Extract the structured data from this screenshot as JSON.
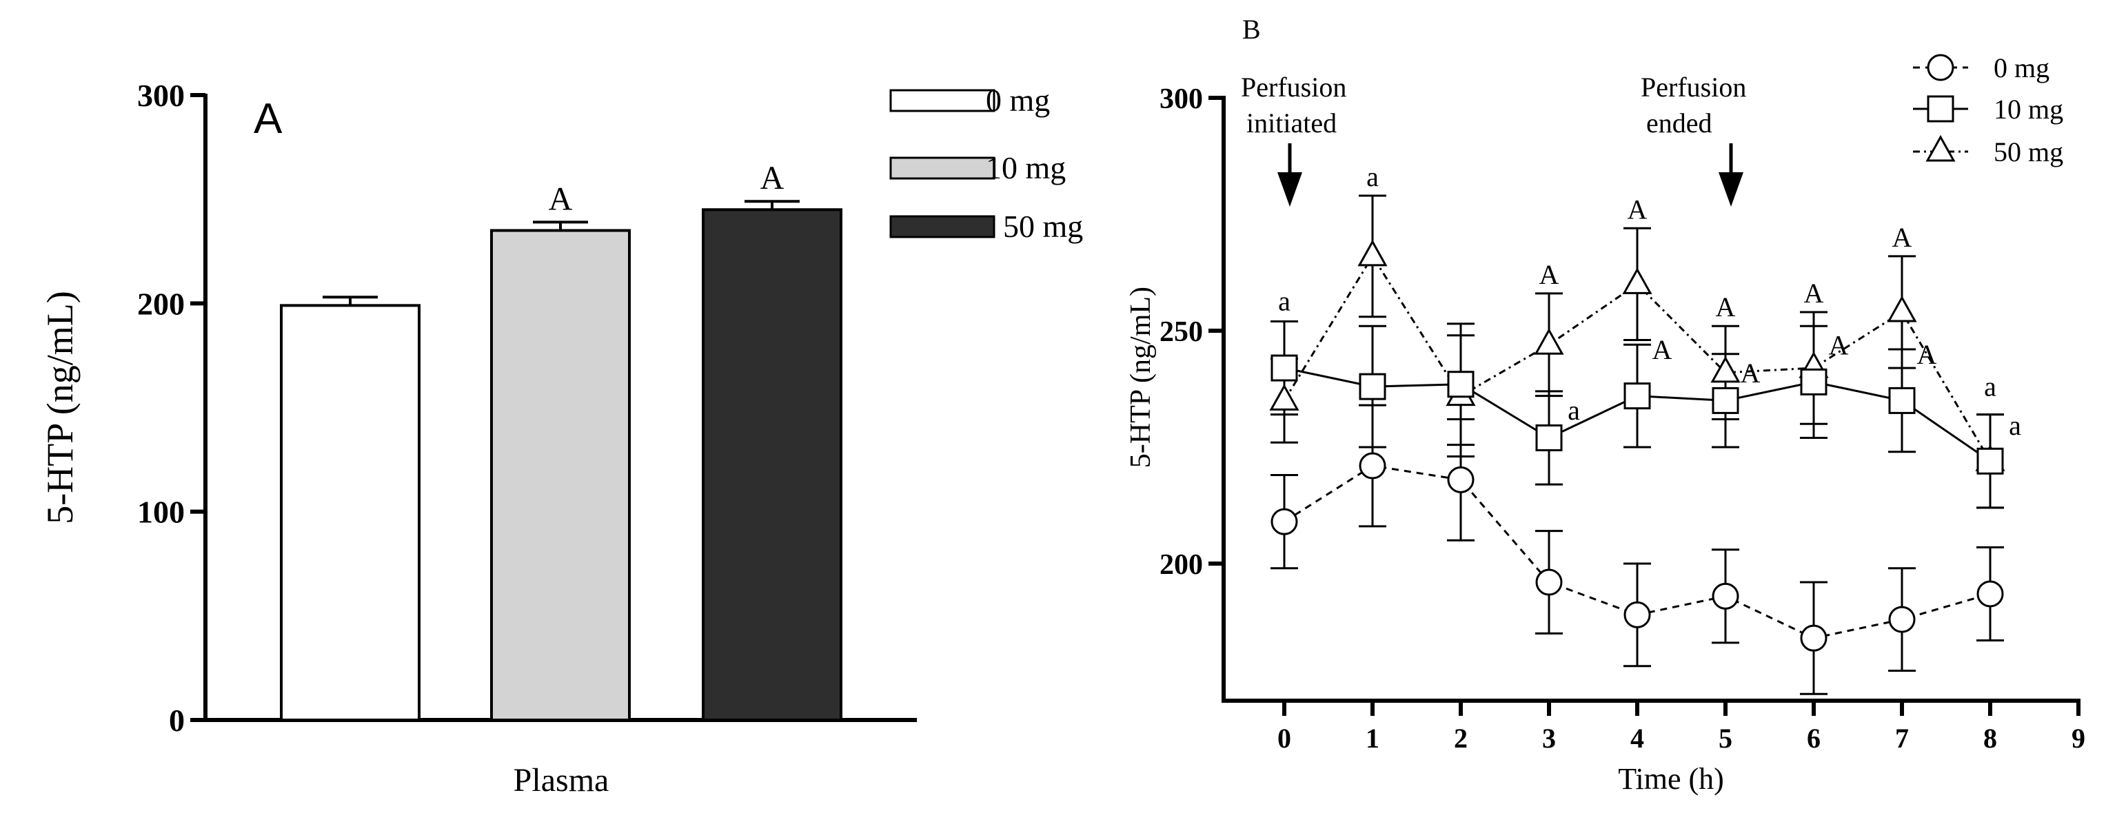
{
  "chart_data": [
    {
      "panel": "A",
      "type": "bar",
      "ylabel": "5-HTP (ng/mL)",
      "xlabel": "Plasma",
      "ylim": [
        0,
        300
      ],
      "yticks": [
        0,
        100,
        200,
        300
      ],
      "categories": [
        "0 mg",
        "10 mg",
        "50 mg"
      ],
      "values": [
        199,
        235,
        245
      ],
      "errors": [
        4,
        4,
        4
      ],
      "annotations": [
        "",
        "A",
        "A"
      ],
      "colors": [
        "#ffffff",
        "#d3d3d3",
        "#2e2e2e"
      ],
      "legend": {
        "position": "top-right",
        "entries": [
          {
            "label": "0 mg",
            "color": "#ffffff"
          },
          {
            "label": "10 mg",
            "color": "#d3d3d3"
          },
          {
            "label": "50 mg",
            "color": "#2e2e2e"
          }
        ]
      }
    },
    {
      "panel": "B",
      "type": "line",
      "xlabel": "Time (h)",
      "ylabel": "5-HTP (ng/mL)",
      "xlim": [
        0,
        9
      ],
      "xticks": [
        0,
        1,
        2,
        3,
        4,
        5,
        6,
        7,
        8,
        9
      ],
      "ylim": [
        170,
        300
      ],
      "yticks": [
        200,
        250,
        300
      ],
      "events": [
        {
          "x": 0,
          "label_line1": "Perfusion",
          "label_line2": "initiated"
        },
        {
          "x": 5,
          "label_line1": "Perfusion",
          "label_line2": "ended"
        }
      ],
      "series": [
        {
          "name": "0 mg",
          "marker": "circle",
          "line": "dashed",
          "x": [
            0,
            1,
            2,
            3,
            4,
            5,
            6,
            7,
            8
          ],
          "y": [
            209,
            221,
            218,
            196,
            189,
            193,
            184,
            188,
            193.5
          ],
          "err": [
            10,
            13,
            13,
            11,
            11,
            10,
            12,
            11,
            10
          ],
          "labels": [
            "",
            "",
            "",
            "",
            "",
            "",
            "",
            "",
            ""
          ]
        },
        {
          "name": "10 mg",
          "marker": "square",
          "line": "solid",
          "x": [
            0,
            1,
            2,
            3,
            4,
            5,
            6,
            7,
            8
          ],
          "y": [
            242,
            238,
            238.5,
            227,
            236,
            235,
            239,
            235,
            222
          ],
          "err": [
            10,
            13,
            13,
            10,
            11,
            10,
            12,
            11,
            10
          ],
          "labels": [
            "a",
            "",
            "",
            "a",
            "A",
            "A",
            "A",
            "A",
            "a"
          ]
        },
        {
          "name": "50 mg",
          "marker": "triangle",
          "line": "dash-dot",
          "x": [
            0,
            1,
            2,
            3,
            4,
            5,
            6,
            7,
            8
          ],
          "y": [
            235,
            266,
            236,
            247,
            260,
            241,
            242,
            254,
            222
          ],
          "err": [
            9,
            13,
            13,
            11,
            12,
            10,
            12,
            12,
            10
          ],
          "labels": [
            "",
            "a",
            "",
            "A",
            "A",
            "A",
            "A",
            "A",
            "a"
          ]
        }
      ],
      "legend": {
        "position": "top-right",
        "entries": [
          {
            "label": "0 mg",
            "marker": "circle"
          },
          {
            "label": "10 mg",
            "marker": "square"
          },
          {
            "label": "50 mg",
            "marker": "triangle"
          }
        ]
      }
    }
  ]
}
